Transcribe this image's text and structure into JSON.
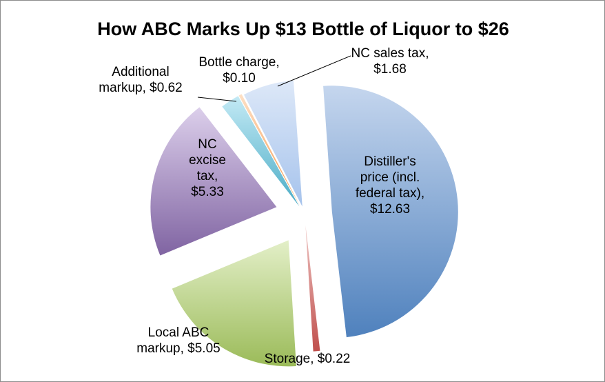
{
  "chart_data": {
    "type": "pie",
    "title": "How ABC Marks Up $13 Bottle of Liquor to $26",
    "slices": [
      {
        "label_lines": [
          "Distiller's",
          "price (incl.",
          "federal tax),",
          "$12.63"
        ],
        "value": 12.63,
        "color": "#4f81bd",
        "color_light": "#c5d6ee"
      },
      {
        "label_lines": [
          "Storage, $0.22"
        ],
        "value": 0.22,
        "color": "#c0504d",
        "color_light": "#eec4c2"
      },
      {
        "label_lines": [
          "Local ABC",
          "markup, $5.05"
        ],
        "value": 5.05,
        "color": "#9bbb59",
        "color_light": "#e3efc8"
      },
      {
        "label_lines": [
          "NC",
          "excise",
          "tax,",
          "$5.33"
        ],
        "value": 5.33,
        "color": "#8064a2",
        "color_light": "#dccfeb"
      },
      {
        "label_lines": [
          "Additional",
          "markup, $0.62"
        ],
        "value": 0.62,
        "color": "#4bacc6",
        "color_light": "#c4eaf5"
      },
      {
        "label_lines": [
          "Bottle charge,",
          "$0.10"
        ],
        "value": 0.1,
        "color": "#f79646",
        "color_light": "#fde0c6"
      },
      {
        "label_lines": [
          "NC sales tax,",
          "$1.68"
        ],
        "value": 1.68,
        "color": "#a6c3ec",
        "color_light": "#dde8f8"
      }
    ],
    "legend": "none",
    "data_labels": "category name and value"
  }
}
